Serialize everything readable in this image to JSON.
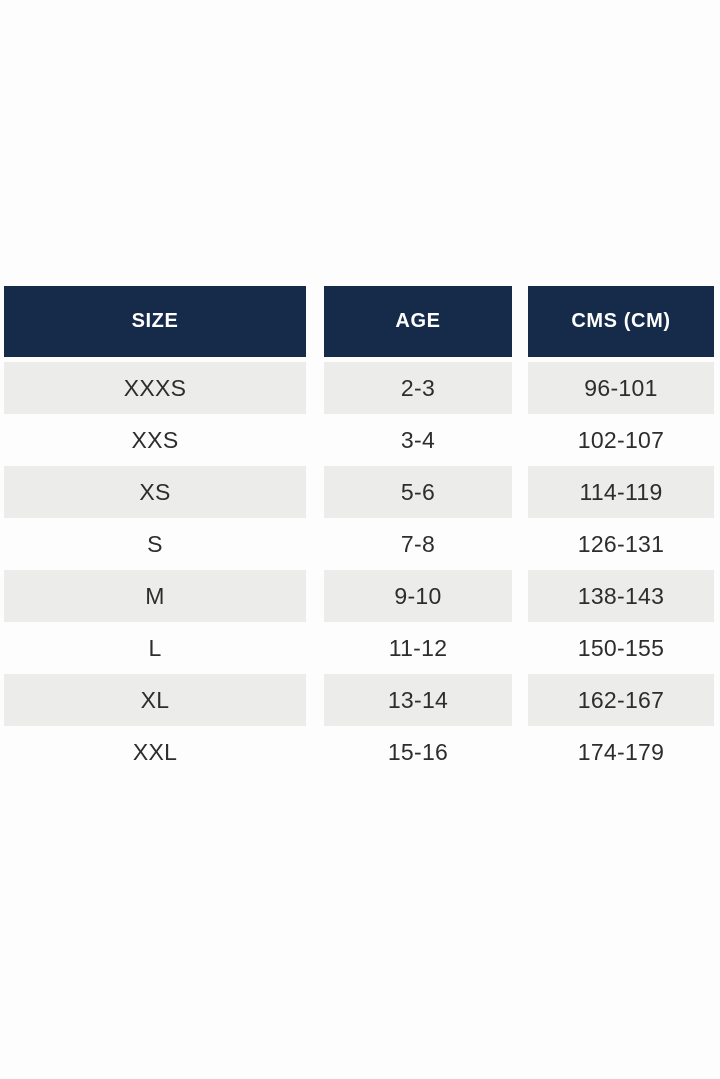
{
  "chart_data": {
    "type": "table",
    "title": "",
    "columns": [
      "SIZE",
      "AGE",
      "CMS (CM)"
    ],
    "rows": [
      [
        "XXXS",
        "2-3",
        "96-101"
      ],
      [
        "XXS",
        "3-4",
        "102-107"
      ],
      [
        "XS",
        "5-6",
        "114-119"
      ],
      [
        "S",
        "7-8",
        "126-131"
      ],
      [
        "M",
        "9-10",
        "138-143"
      ],
      [
        "L",
        "11-12",
        "150-155"
      ],
      [
        "XL",
        "13-14",
        "162-167"
      ],
      [
        "XXL",
        "15-16",
        "174-179"
      ]
    ],
    "layout_hints": {
      "striped_rows": "odd rows shaded",
      "columns_separated_by_gaps": true,
      "alignment": "center"
    }
  },
  "colors": {
    "page_bg": "#fdfdfd",
    "header_bg": "#162a4a",
    "header_text": "#ffffff",
    "stripe_row_bg": "#ececeb",
    "plain_row_bg": "#fdfdfd",
    "cell_text": "#2d2d2d"
  }
}
